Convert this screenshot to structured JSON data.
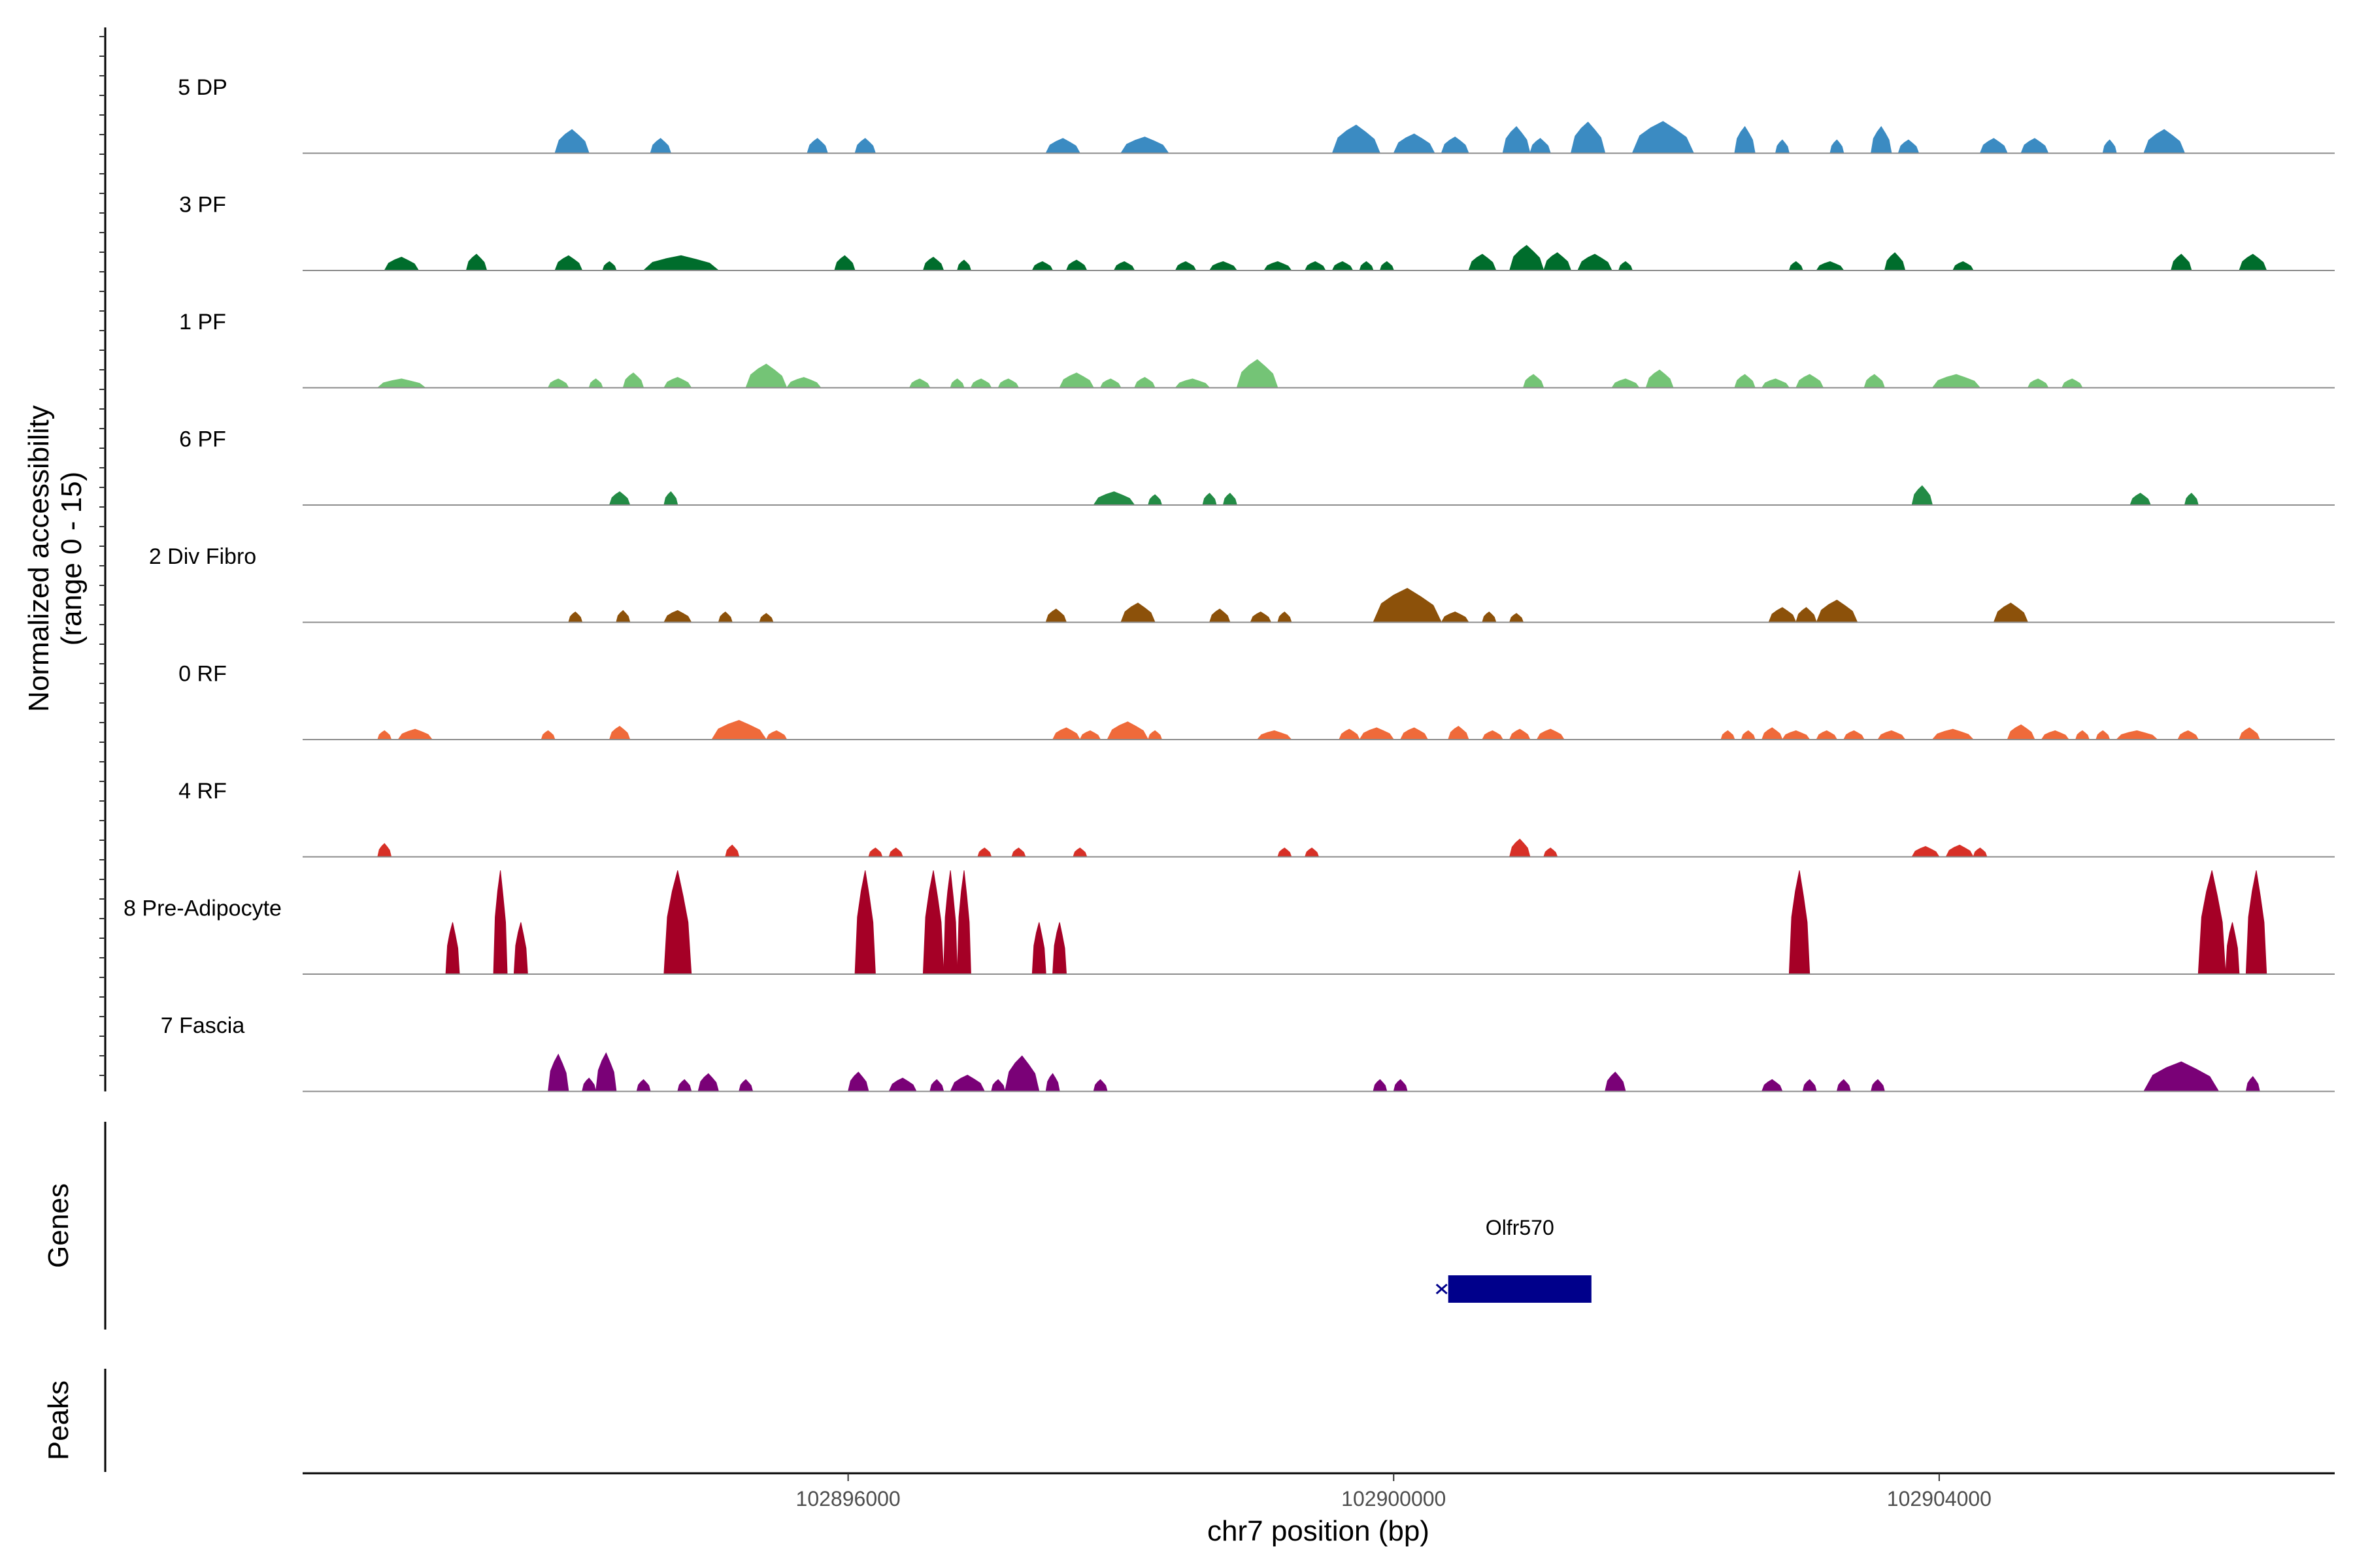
{
  "chart_data": {
    "type": "area",
    "title": "",
    "chromosome": "chr7",
    "xlim": [
      102892000,
      102906900
    ],
    "xlabel": "chr7 position (bp)",
    "ylabel_line1": "Normalized accessibility",
    "ylabel_line2": "(range 0 - 15)",
    "ylim": [
      0,
      15
    ],
    "x_ticks": [
      102896000,
      102900000,
      102904000
    ],
    "x_tick_labels": [
      "102896000",
      "102900000",
      "102904000"
    ],
    "panel_labels": {
      "genes": "Genes",
      "peaks": "Peaks"
    },
    "tracks": [
      {
        "name": "5 DP",
        "color": "#3B8BC2",
        "peaks": [
          [
            102893850,
            102894100,
            3.2
          ],
          [
            102894550,
            102894700,
            2.0
          ],
          [
            102895700,
            102895850,
            2.0
          ],
          [
            102896050,
            102896200,
            2.0
          ],
          [
            102897450,
            102897700,
            2.0
          ],
          [
            102898000,
            102898350,
            2.2
          ],
          [
            102899550,
            102899900,
            3.8
          ],
          [
            102900000,
            102900300,
            2.6
          ],
          [
            102900350,
            102900550,
            2.2
          ],
          [
            102900800,
            102901000,
            3.6
          ],
          [
            102901000,
            102901150,
            2.0
          ],
          [
            102901300,
            102901550,
            4.2
          ],
          [
            102901750,
            102902200,
            4.3
          ],
          [
            102902500,
            102902650,
            3.6
          ],
          [
            102902800,
            102902900,
            1.8
          ],
          [
            102903200,
            102903300,
            1.8
          ],
          [
            102903500,
            102903650,
            3.6
          ],
          [
            102903700,
            102903850,
            1.8
          ],
          [
            102904300,
            102904500,
            2.0
          ],
          [
            102904600,
            102904800,
            2.0
          ],
          [
            102905200,
            102905300,
            1.8
          ],
          [
            102905500,
            102905800,
            3.2
          ]
        ]
      },
      {
        "name": "3 PF",
        "color": "#006D2C",
        "peaks": [
          [
            102892600,
            102892850,
            1.8
          ],
          [
            102893200,
            102893350,
            2.2
          ],
          [
            102893850,
            102894050,
            2.0
          ],
          [
            102894200,
            102894300,
            1.2
          ],
          [
            102894500,
            102895050,
            2.0
          ],
          [
            102895900,
            102896050,
            2.0
          ],
          [
            102896550,
            102896700,
            1.8
          ],
          [
            102896800,
            102896900,
            1.4
          ],
          [
            102897350,
            102897500,
            1.2
          ],
          [
            102897600,
            102897750,
            1.4
          ],
          [
            102897950,
            102898100,
            1.2
          ],
          [
            102898400,
            102898550,
            1.2
          ],
          [
            102898650,
            102898850,
            1.2
          ],
          [
            102899050,
            102899250,
            1.2
          ],
          [
            102899350,
            102899500,
            1.2
          ],
          [
            102899550,
            102899700,
            1.2
          ],
          [
            102899750,
            102899850,
            1.2
          ],
          [
            102899900,
            102900000,
            1.2
          ],
          [
            102900550,
            102900750,
            2.2
          ],
          [
            102900850,
            102901100,
            3.4
          ],
          [
            102901100,
            102901300,
            2.4
          ],
          [
            102901350,
            102901600,
            2.2
          ],
          [
            102901650,
            102901750,
            1.2
          ],
          [
            102902900,
            102903000,
            1.2
          ],
          [
            102903100,
            102903300,
            1.2
          ],
          [
            102903600,
            102903750,
            2.4
          ],
          [
            102904100,
            102904250,
            1.2
          ],
          [
            102905700,
            102905850,
            2.2
          ],
          [
            102906200,
            102906400,
            2.2
          ]
        ]
      },
      {
        "name": "1 PF",
        "color": "#74C476",
        "peaks": [
          [
            102892550,
            102892900,
            1.2
          ],
          [
            102893800,
            102893950,
            1.2
          ],
          [
            102894100,
            102894200,
            1.2
          ],
          [
            102894350,
            102894500,
            2.0
          ],
          [
            102894650,
            102894850,
            1.4
          ],
          [
            102895250,
            102895550,
            3.2
          ],
          [
            102895550,
            102895800,
            1.4
          ],
          [
            102896450,
            102896600,
            1.2
          ],
          [
            102896750,
            102896850,
            1.2
          ],
          [
            102896900,
            102897050,
            1.2
          ],
          [
            102897100,
            102897250,
            1.2
          ],
          [
            102897550,
            102897800,
            2.0
          ],
          [
            102897850,
            102898000,
            1.2
          ],
          [
            102898100,
            102898250,
            1.4
          ],
          [
            102898400,
            102898650,
            1.2
          ],
          [
            102898850,
            102899150,
            3.8
          ],
          [
            102900950,
            102901100,
            1.8
          ],
          [
            102901600,
            102901800,
            1.2
          ],
          [
            102901850,
            102902050,
            2.4
          ],
          [
            102902500,
            102902650,
            1.8
          ],
          [
            102902700,
            102902900,
            1.2
          ],
          [
            102902950,
            102903150,
            1.8
          ],
          [
            102903450,
            102903600,
            1.8
          ],
          [
            102903950,
            102904300,
            1.8
          ],
          [
            102904650,
            102904800,
            1.2
          ],
          [
            102904900,
            102905050,
            1.2
          ]
        ]
      },
      {
        "name": "6 PF",
        "color": "#238B45",
        "peaks": [
          [
            102894250,
            102894400,
            1.8
          ],
          [
            102894650,
            102894750,
            1.8
          ],
          [
            102897800,
            102898100,
            1.8
          ],
          [
            102898200,
            102898300,
            1.4
          ],
          [
            102898600,
            102898700,
            1.6
          ],
          [
            102898750,
            102898850,
            1.6
          ],
          [
            102903800,
            102903950,
            2.6
          ],
          [
            102905400,
            102905550,
            1.6
          ],
          [
            102905800,
            102905900,
            1.6
          ]
        ]
      },
      {
        "name": "2 Div Fibro",
        "color": "#8C510A",
        "peaks": [
          [
            102893950,
            102894050,
            1.4
          ],
          [
            102894300,
            102894400,
            1.6
          ],
          [
            102894650,
            102894850,
            1.6
          ],
          [
            102895050,
            102895150,
            1.4
          ],
          [
            102895350,
            102895450,
            1.2
          ],
          [
            102897450,
            102897600,
            1.8
          ],
          [
            102898000,
            102898250,
            2.6
          ],
          [
            102898650,
            102898800,
            1.8
          ],
          [
            102898950,
            102899100,
            1.4
          ],
          [
            102899150,
            102899250,
            1.4
          ],
          [
            102899850,
            102900350,
            4.6
          ],
          [
            102900350,
            102900550,
            1.4
          ],
          [
            102900650,
            102900750,
            1.4
          ],
          [
            102900850,
            102900950,
            1.2
          ],
          [
            102902750,
            102902950,
            2.0
          ],
          [
            102902950,
            102903100,
            2.0
          ],
          [
            102903100,
            102903400,
            3.0
          ],
          [
            102904400,
            102904650,
            2.6
          ]
        ]
      },
      {
        "name": "0 RF",
        "color": "#EF6A3A",
        "peaks": [
          [
            102892550,
            102892650,
            1.2
          ],
          [
            102892700,
            102892950,
            1.4
          ],
          [
            102893750,
            102893850,
            1.2
          ],
          [
            102894250,
            102894400,
            1.8
          ],
          [
            102895000,
            102895400,
            2.6
          ],
          [
            102895400,
            102895550,
            1.2
          ],
          [
            102897500,
            102897700,
            1.6
          ],
          [
            102897700,
            102897850,
            1.2
          ],
          [
            102897900,
            102898200,
            2.4
          ],
          [
            102898200,
            102898300,
            1.2
          ],
          [
            102899000,
            102899250,
            1.2
          ],
          [
            102899600,
            102899750,
            1.4
          ],
          [
            102899750,
            102900000,
            1.6
          ],
          [
            102900050,
            102900250,
            1.6
          ],
          [
            102900400,
            102900550,
            1.8
          ],
          [
            102900650,
            102900800,
            1.2
          ],
          [
            102900850,
            102901000,
            1.4
          ],
          [
            102901050,
            102901250,
            1.4
          ],
          [
            102902400,
            102902500,
            1.2
          ],
          [
            102902550,
            102902650,
            1.2
          ],
          [
            102902700,
            102902850,
            1.6
          ],
          [
            102902850,
            102903050,
            1.2
          ],
          [
            102903100,
            102903250,
            1.2
          ],
          [
            102903300,
            102903450,
            1.2
          ],
          [
            102903550,
            102903750,
            1.2
          ],
          [
            102903950,
            102904250,
            1.4
          ],
          [
            102904500,
            102904700,
            2.0
          ],
          [
            102904750,
            102904950,
            1.2
          ],
          [
            102905000,
            102905100,
            1.2
          ],
          [
            102905150,
            102905250,
            1.2
          ],
          [
            102905300,
            102905600,
            1.2
          ],
          [
            102905750,
            102905900,
            1.2
          ],
          [
            102906200,
            102906350,
            1.6
          ]
        ]
      },
      {
        "name": "4 RF",
        "color": "#D73027",
        "peaks": [
          [
            102892550,
            102892650,
            1.8
          ],
          [
            102895100,
            102895200,
            1.6
          ],
          [
            102896150,
            102896250,
            1.2
          ],
          [
            102896300,
            102896400,
            1.2
          ],
          [
            102896950,
            102897050,
            1.2
          ],
          [
            102897200,
            102897300,
            1.2
          ],
          [
            102897650,
            102897750,
            1.2
          ],
          [
            102899150,
            102899250,
            1.2
          ],
          [
            102899350,
            102899450,
            1.2
          ],
          [
            102900850,
            102901000,
            2.4
          ],
          [
            102901100,
            102901200,
            1.2
          ],
          [
            102903800,
            102904000,
            1.4
          ],
          [
            102904050,
            102904250,
            1.6
          ],
          [
            102904250,
            102904350,
            1.2
          ]
        ]
      },
      {
        "name": "8 Pre-Adipocyte",
        "color": "#A50026",
        "peaks": [
          [
            102893050,
            102893150,
            7.0
          ],
          [
            102893400,
            102893500,
            14.0
          ],
          [
            102893550,
            102893650,
            7.0
          ],
          [
            102894650,
            102894850,
            14.0
          ],
          [
            102896050,
            102896200,
            14.0
          ],
          [
            102896550,
            102896700,
            14.0
          ],
          [
            102896700,
            102896800,
            14.0
          ],
          [
            102896800,
            102896900,
            14.0
          ],
          [
            102897350,
            102897450,
            7.0
          ],
          [
            102897500,
            102897600,
            7.0
          ],
          [
            102902900,
            102903050,
            14.0
          ],
          [
            102905900,
            102906100,
            14.0
          ],
          [
            102906100,
            102906200,
            7.0
          ],
          [
            102906250,
            102906400,
            14.0
          ]
        ]
      },
      {
        "name": "7 Fascia",
        "color": "#7A0177",
        "peaks": [
          [
            102893800,
            102893950,
            5.0
          ],
          [
            102894050,
            102894150,
            1.8
          ],
          [
            102894150,
            102894300,
            5.2
          ],
          [
            102894450,
            102894550,
            1.6
          ],
          [
            102894750,
            102894850,
            1.6
          ],
          [
            102894900,
            102895050,
            2.4
          ],
          [
            102895200,
            102895300,
            1.6
          ],
          [
            102896000,
            102896150,
            2.6
          ],
          [
            102896300,
            102896500,
            1.8
          ],
          [
            102896600,
            102896700,
            1.6
          ],
          [
            102896750,
            102897000,
            2.2
          ],
          [
            102897050,
            102897150,
            1.6
          ],
          [
            102897150,
            102897400,
            4.8
          ],
          [
            102897450,
            102897550,
            2.4
          ],
          [
            102897800,
            102897900,
            1.6
          ],
          [
            102899850,
            102899950,
            1.6
          ],
          [
            102900000,
            102900100,
            1.6
          ],
          [
            102901550,
            102901700,
            2.6
          ],
          [
            102902700,
            102902850,
            1.6
          ],
          [
            102903000,
            102903100,
            1.6
          ],
          [
            102903250,
            102903350,
            1.6
          ],
          [
            102903500,
            102903600,
            1.6
          ],
          [
            102905500,
            102906050,
            4.0
          ],
          [
            102906250,
            102906350,
            2.0
          ]
        ]
      }
    ],
    "genes": [
      {
        "name": "Olfr570",
        "start": 102900400,
        "end": 102901450,
        "strand": "-",
        "color": "#00008B"
      }
    ],
    "peaks_track": []
  }
}
